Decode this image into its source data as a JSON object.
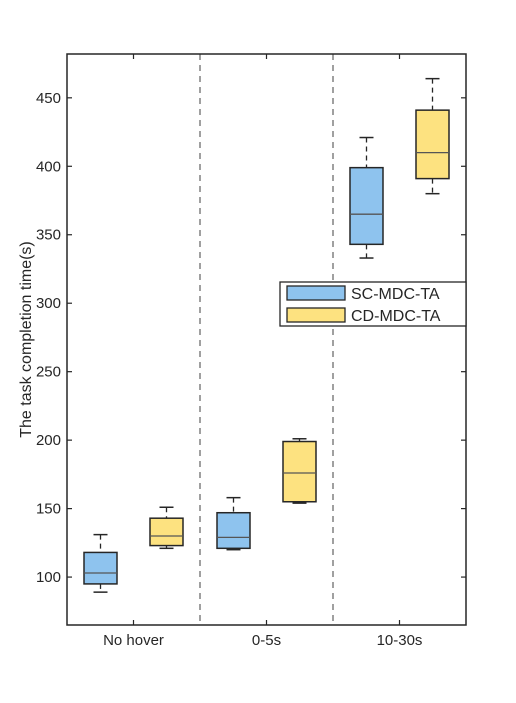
{
  "chart_data": {
    "type": "boxplot",
    "ylabel": "The task completion time(s)",
    "xlabel": "",
    "ylim": [
      65,
      482
    ],
    "yticks": [
      100,
      150,
      200,
      250,
      300,
      350,
      400,
      450
    ],
    "ytick_labels": [
      "100",
      "150",
      "200",
      "250",
      "300",
      "350",
      "400",
      "450"
    ],
    "categories": [
      "No hover",
      "0-5s",
      "10-30s"
    ],
    "grid": false,
    "group_separators": "dashed vertical lines between categories",
    "legend_position": "right, middle",
    "series": [
      {
        "name": "SC-MDC-TA",
        "color": "#8ec3ee",
        "boxes": [
          {
            "whisker_low": 89,
            "q1": 95,
            "median": 103,
            "q3": 118,
            "whisker_high": 131
          },
          {
            "whisker_low": 120,
            "q1": 121,
            "median": 129,
            "q3": 147,
            "whisker_high": 158
          },
          {
            "whisker_low": 333,
            "q1": 343,
            "median": 365,
            "q3": 399,
            "whisker_high": 421
          }
        ]
      },
      {
        "name": "CD-MDC-TA",
        "color": "#fde280",
        "boxes": [
          {
            "whisker_low": 121,
            "q1": 123,
            "median": 130,
            "q3": 143,
            "whisker_high": 151
          },
          {
            "whisker_low": 154,
            "q1": 155,
            "median": 176,
            "q3": 199,
            "whisker_high": 201
          },
          {
            "whisker_low": 380,
            "q1": 391,
            "median": 410,
            "q3": 441,
            "whisker_high": 464
          }
        ]
      }
    ]
  }
}
